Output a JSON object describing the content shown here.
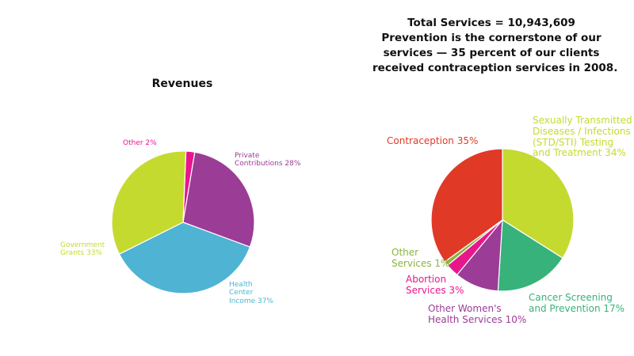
{
  "header": {
    "total_line": "Total Services = 10,943,609",
    "subtitle_lines": [
      "Prevention is the cornerstone of our",
      "services — 35 percent of our clients",
      "received contraception services in 2008."
    ]
  },
  "chart_data": [
    {
      "type": "pie",
      "title": "Revenues",
      "slices": [
        {
          "name": "Other",
          "value": 2,
          "color": "#e8168c",
          "label": "Other 2%"
        },
        {
          "name": "Private Contributions",
          "value": 28,
          "color": "#9b3c97",
          "label": "Private\nContributions 28%"
        },
        {
          "name": "Health Center Income",
          "value": 37,
          "color": "#4fb3d3",
          "label": "Health\nCenter\nIncome 37%"
        },
        {
          "name": "Government Grants",
          "value": 33,
          "color": "#c5da2f",
          "label": "Government\nGrants 33%"
        }
      ]
    },
    {
      "type": "pie",
      "title": "Total Services",
      "slices": [
        {
          "name": "Sexually Transmitted Diseases / Infections (STD/STI) Testing and Treatment",
          "value": 34,
          "color": "#c5da2f",
          "label": "Sexually Transmitted\nDiseases / Infections\n(STD/STI) Testing\nand Treatment 34%"
        },
        {
          "name": "Cancer Screening and Prevention",
          "value": 17,
          "color": "#37b27a",
          "label": "Cancer Screening\nand Prevention 17%"
        },
        {
          "name": "Other Women's Health Services",
          "value": 10,
          "color": "#9b3c97",
          "label": "Other Women's\nHealth Services 10%"
        },
        {
          "name": "Abortion Services",
          "value": 3,
          "color": "#e8168c",
          "label": "Abortion\nServices 3%"
        },
        {
          "name": "Other Services",
          "value": 1,
          "color": "#8cb43c",
          "label": "Other\nServices 1%"
        },
        {
          "name": "Contraception",
          "value": 35,
          "color": "#e03a26",
          "label": "Contraception 35%"
        }
      ]
    }
  ]
}
